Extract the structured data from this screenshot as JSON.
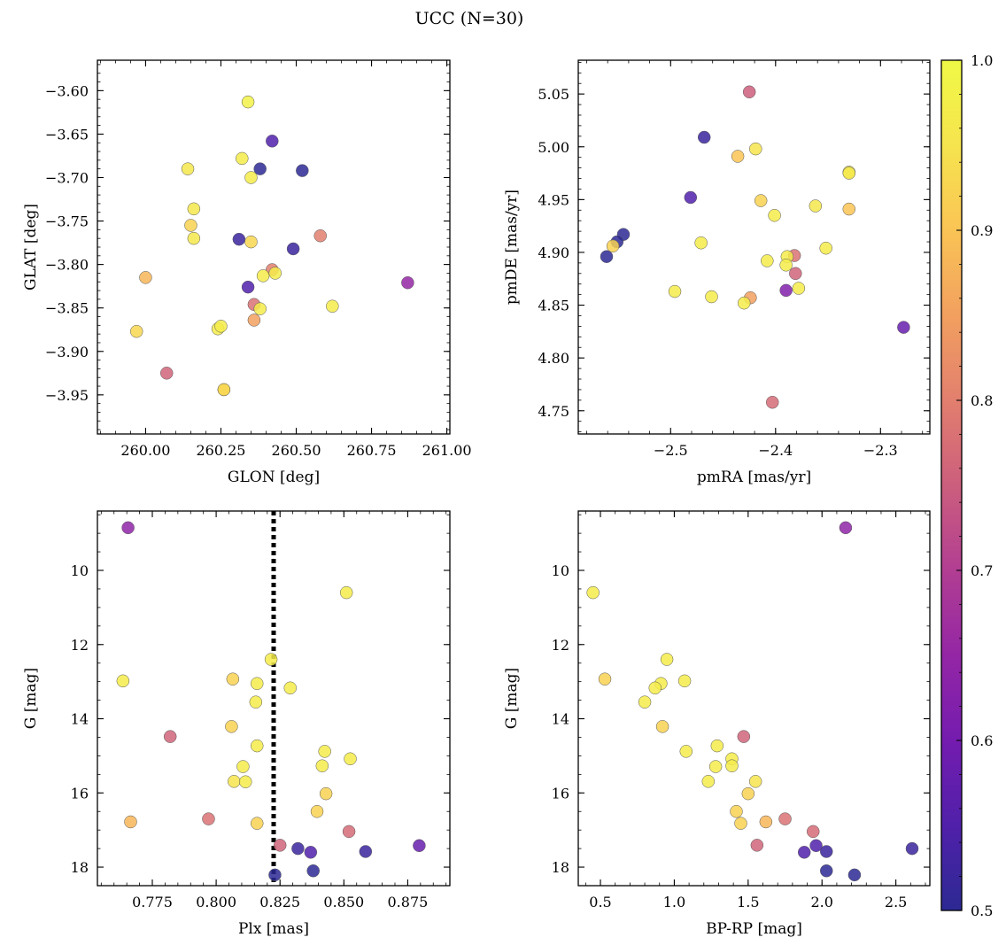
{
  "figure": {
    "title": "UCC (N=30)"
  },
  "colorbar": {
    "range": [
      0.5,
      1.0
    ],
    "ticks": [
      "0.5",
      "0.6",
      "0.7",
      "0.8",
      "0.9",
      "1.0"
    ],
    "colormap": "plasma"
  },
  "chart_data": [
    {
      "type": "scatter",
      "xlabel": "GLON [deg]",
      "ylabel": "GLAT [deg]",
      "xlim": [
        259.84,
        261.01
      ],
      "ylim": [
        -3.995,
        -3.565
      ],
      "xticks": [
        "260.00",
        "260.25",
        "260.50",
        "260.75",
        "261.00"
      ],
      "yticks": [
        "-3.60",
        "-3.65",
        "-3.70",
        "-3.75",
        "-3.80",
        "-3.85",
        "-3.90",
        "-3.95"
      ],
      "points": [
        {
          "x": 260.34,
          "y": -3.613,
          "c": 0.98
        },
        {
          "x": 260.42,
          "y": -3.658,
          "c": 0.55
        },
        {
          "x": 260.14,
          "y": -3.69,
          "c": 0.96
        },
        {
          "x": 260.32,
          "y": -3.678,
          "c": 0.97
        },
        {
          "x": 260.38,
          "y": -3.69,
          "c": 0.5
        },
        {
          "x": 260.52,
          "y": -3.692,
          "c": 0.5
        },
        {
          "x": 260.35,
          "y": -3.7,
          "c": 0.97
        },
        {
          "x": 260.16,
          "y": -3.736,
          "c": 0.96
        },
        {
          "x": 260.15,
          "y": -3.755,
          "c": 0.92
        },
        {
          "x": 260.16,
          "y": -3.77,
          "c": 0.96
        },
        {
          "x": 260.31,
          "y": -3.771,
          "c": 0.52
        },
        {
          "x": 260.35,
          "y": -3.774,
          "c": 0.93
        },
        {
          "x": 260.58,
          "y": -3.767,
          "c": 0.8
        },
        {
          "x": 260.49,
          "y": -3.782,
          "c": 0.52
        },
        {
          "x": 260.42,
          "y": -3.806,
          "c": 0.8
        },
        {
          "x": 260.43,
          "y": -3.81,
          "c": 0.97
        },
        {
          "x": 260.39,
          "y": -3.813,
          "c": 0.97
        },
        {
          "x": 260.0,
          "y": -3.815,
          "c": 0.88
        },
        {
          "x": 260.34,
          "y": -3.826,
          "c": 0.55
        },
        {
          "x": 260.87,
          "y": -3.821,
          "c": 0.65
        },
        {
          "x": 260.36,
          "y": -3.846,
          "c": 0.78
        },
        {
          "x": 260.38,
          "y": -3.851,
          "c": 0.97
        },
        {
          "x": 260.62,
          "y": -3.848,
          "c": 0.97
        },
        {
          "x": 260.36,
          "y": -3.864,
          "c": 0.85
        },
        {
          "x": 260.24,
          "y": -3.874,
          "c": 0.97
        },
        {
          "x": 260.25,
          "y": -3.871,
          "c": 0.97
        },
        {
          "x": 259.97,
          "y": -3.877,
          "c": 0.93
        },
        {
          "x": 260.07,
          "y": -3.925,
          "c": 0.76
        },
        {
          "x": 260.26,
          "y": -3.944,
          "c": 0.92
        },
        {
          "x": 260.26,
          "y": -3.944,
          "c": 0.93
        }
      ]
    },
    {
      "type": "scatter",
      "xlabel": "pmRA [mas/yr]",
      "ylabel": "pmDE [mas/yr]",
      "xlim": [
        -2.588,
        -2.253
      ],
      "ylim": [
        4.728,
        5.082
      ],
      "xticks": [
        "-2.5",
        "-2.4",
        "-2.3"
      ],
      "yticks": [
        "5.05",
        "5.00",
        "4.95",
        "4.90",
        "4.85",
        "4.80",
        "4.75"
      ],
      "points": [
        {
          "x": -2.425,
          "y": 5.052,
          "c": 0.75
        },
        {
          "x": -2.468,
          "y": 5.009,
          "c": 0.52
        },
        {
          "x": -2.419,
          "y": 4.998,
          "c": 0.95
        },
        {
          "x": -2.436,
          "y": 4.991,
          "c": 0.9
        },
        {
          "x": -2.33,
          "y": 4.976,
          "c": 0.97
        },
        {
          "x": -2.33,
          "y": 4.975,
          "c": 0.96
        },
        {
          "x": -2.481,
          "y": 4.952,
          "c": 0.55
        },
        {
          "x": -2.414,
          "y": 4.949,
          "c": 0.92
        },
        {
          "x": -2.362,
          "y": 4.944,
          "c": 0.96
        },
        {
          "x": -2.33,
          "y": 4.941,
          "c": 0.9
        },
        {
          "x": -2.401,
          "y": 4.935,
          "c": 0.97
        },
        {
          "x": -2.545,
          "y": 4.917,
          "c": 0.5
        },
        {
          "x": -2.551,
          "y": 4.91,
          "c": 0.5
        },
        {
          "x": -2.471,
          "y": 4.909,
          "c": 0.97
        },
        {
          "x": -2.555,
          "y": 4.906,
          "c": 0.92
        },
        {
          "x": -2.352,
          "y": 4.904,
          "c": 0.97
        },
        {
          "x": -2.382,
          "y": 4.897,
          "c": 0.78
        },
        {
          "x": -2.389,
          "y": 4.896,
          "c": 0.97
        },
        {
          "x": -2.561,
          "y": 4.896,
          "c": 0.5
        },
        {
          "x": -2.408,
          "y": 4.892,
          "c": 0.97
        },
        {
          "x": -2.39,
          "y": 4.888,
          "c": 0.97
        },
        {
          "x": -2.381,
          "y": 4.88,
          "c": 0.76
        },
        {
          "x": -2.378,
          "y": 4.866,
          "c": 0.97
        },
        {
          "x": -2.39,
          "y": 4.864,
          "c": 0.62
        },
        {
          "x": -2.496,
          "y": 4.863,
          "c": 0.97
        },
        {
          "x": -2.461,
          "y": 4.858,
          "c": 0.97
        },
        {
          "x": -2.424,
          "y": 4.857,
          "c": 0.85
        },
        {
          "x": -2.43,
          "y": 4.852,
          "c": 0.97
        },
        {
          "x": -2.278,
          "y": 4.829,
          "c": 0.58
        },
        {
          "x": -2.403,
          "y": 4.758,
          "c": 0.77
        }
      ]
    },
    {
      "type": "scatter",
      "xlabel": "Plx [mas]",
      "ylabel": "G [mag]",
      "xlim": [
        0.7535,
        0.8915
      ],
      "ylim": [
        18.5,
        8.4
      ],
      "xticks": [
        "0.775",
        "0.800",
        "0.825",
        "0.850",
        "0.875"
      ],
      "yticks": [
        "10",
        "12",
        "14",
        "16",
        "18"
      ],
      "vline": {
        "x": 0.8225,
        "style": "dotted"
      },
      "points": [
        {
          "x": 0.7655,
          "y": 8.85,
          "c": 0.64
        },
        {
          "x": 0.851,
          "y": 10.6,
          "c": 0.97
        },
        {
          "x": 0.8215,
          "y": 12.4,
          "c": 0.97
        },
        {
          "x": 0.7635,
          "y": 12.98,
          "c": 0.97
        },
        {
          "x": 0.8065,
          "y": 12.93,
          "c": 0.92
        },
        {
          "x": 0.816,
          "y": 13.05,
          "c": 0.97
        },
        {
          "x": 0.829,
          "y": 13.17,
          "c": 0.97
        },
        {
          "x": 0.8155,
          "y": 13.55,
          "c": 0.97
        },
        {
          "x": 0.806,
          "y": 14.21,
          "c": 0.92
        },
        {
          "x": 0.782,
          "y": 14.48,
          "c": 0.76
        },
        {
          "x": 0.816,
          "y": 14.73,
          "c": 0.97
        },
        {
          "x": 0.8425,
          "y": 14.88,
          "c": 0.97
        },
        {
          "x": 0.8525,
          "y": 15.08,
          "c": 0.97
        },
        {
          "x": 0.8105,
          "y": 15.29,
          "c": 0.97
        },
        {
          "x": 0.8415,
          "y": 15.27,
          "c": 0.97
        },
        {
          "x": 0.807,
          "y": 15.69,
          "c": 0.95
        },
        {
          "x": 0.8115,
          "y": 15.7,
          "c": 0.97
        },
        {
          "x": 0.843,
          "y": 16.02,
          "c": 0.92
        },
        {
          "x": 0.8395,
          "y": 16.5,
          "c": 0.92
        },
        {
          "x": 0.797,
          "y": 16.7,
          "c": 0.78
        },
        {
          "x": 0.7665,
          "y": 16.78,
          "c": 0.88
        },
        {
          "x": 0.816,
          "y": 16.82,
          "c": 0.92
        },
        {
          "x": 0.852,
          "y": 17.04,
          "c": 0.77
        },
        {
          "x": 0.825,
          "y": 17.41,
          "c": 0.76
        },
        {
          "x": 0.8795,
          "y": 17.42,
          "c": 0.58
        },
        {
          "x": 0.832,
          "y": 17.5,
          "c": 0.52
        },
        {
          "x": 0.837,
          "y": 17.6,
          "c": 0.55
        },
        {
          "x": 0.8585,
          "y": 17.58,
          "c": 0.52
        },
        {
          "x": 0.838,
          "y": 18.1,
          "c": 0.5
        },
        {
          "x": 0.823,
          "y": 18.21,
          "c": 0.5
        }
      ]
    },
    {
      "type": "scatter",
      "xlabel": "BP-RP [mag]",
      "ylabel": "G [mag]",
      "xlim": [
        0.35,
        2.73
      ],
      "ylim": [
        18.5,
        8.4
      ],
      "xticks": [
        "0.5",
        "1.0",
        "1.5",
        "2.0",
        "2.5"
      ],
      "yticks": [
        "10",
        "12",
        "14",
        "16",
        "18"
      ],
      "points": [
        {
          "x": 2.16,
          "y": 8.85,
          "c": 0.64
        },
        {
          "x": 0.45,
          "y": 10.6,
          "c": 0.97
        },
        {
          "x": 0.95,
          "y": 12.4,
          "c": 0.97
        },
        {
          "x": 0.53,
          "y": 12.93,
          "c": 0.92
        },
        {
          "x": 1.07,
          "y": 12.98,
          "c": 0.97
        },
        {
          "x": 0.91,
          "y": 13.05,
          "c": 0.97
        },
        {
          "x": 0.87,
          "y": 13.17,
          "c": 0.97
        },
        {
          "x": 0.8,
          "y": 13.55,
          "c": 0.97
        },
        {
          "x": 0.92,
          "y": 14.21,
          "c": 0.92
        },
        {
          "x": 1.47,
          "y": 14.48,
          "c": 0.76
        },
        {
          "x": 1.29,
          "y": 14.73,
          "c": 0.97
        },
        {
          "x": 1.08,
          "y": 14.88,
          "c": 0.97
        },
        {
          "x": 1.39,
          "y": 15.08,
          "c": 0.97
        },
        {
          "x": 1.39,
          "y": 15.27,
          "c": 0.97
        },
        {
          "x": 1.28,
          "y": 15.29,
          "c": 0.97
        },
        {
          "x": 1.23,
          "y": 15.69,
          "c": 0.97
        },
        {
          "x": 1.55,
          "y": 15.69,
          "c": 0.95
        },
        {
          "x": 1.5,
          "y": 16.02,
          "c": 0.92
        },
        {
          "x": 1.42,
          "y": 16.5,
          "c": 0.92
        },
        {
          "x": 1.75,
          "y": 16.7,
          "c": 0.78
        },
        {
          "x": 1.62,
          "y": 16.78,
          "c": 0.88
        },
        {
          "x": 1.45,
          "y": 16.82,
          "c": 0.92
        },
        {
          "x": 1.94,
          "y": 17.04,
          "c": 0.77
        },
        {
          "x": 1.56,
          "y": 17.41,
          "c": 0.76
        },
        {
          "x": 1.96,
          "y": 17.42,
          "c": 0.55
        },
        {
          "x": 2.61,
          "y": 17.5,
          "c": 0.52
        },
        {
          "x": 2.03,
          "y": 17.58,
          "c": 0.52
        },
        {
          "x": 1.88,
          "y": 17.6,
          "c": 0.55
        },
        {
          "x": 2.03,
          "y": 18.1,
          "c": 0.5
        },
        {
          "x": 2.22,
          "y": 18.21,
          "c": 0.5
        }
      ]
    }
  ]
}
